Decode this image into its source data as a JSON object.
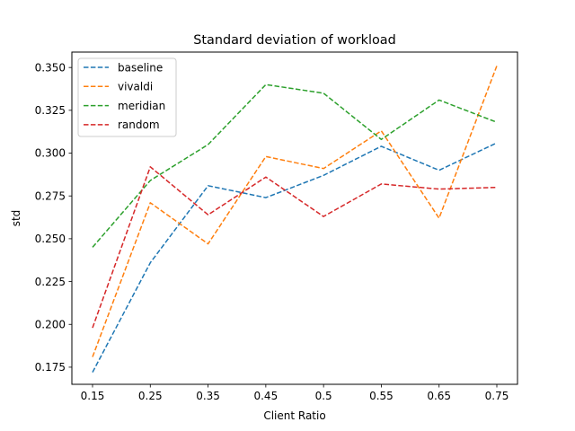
{
  "chart_data": {
    "type": "line",
    "title": "Standard deviation of workload",
    "xlabel": "Client Ratio",
    "ylabel": "std",
    "categories": [
      "0.15",
      "0.25",
      "0.35",
      "0.45",
      "0.5",
      "0.55",
      "0.65",
      "0.75"
    ],
    "ylim": [
      0.165,
      0.359
    ],
    "yticks": [
      "0.175",
      "0.200",
      "0.225",
      "0.250",
      "0.275",
      "0.300",
      "0.325",
      "0.350"
    ],
    "line_style": "dashed",
    "grid": false,
    "legend_position": "top-left",
    "series": [
      {
        "name": "baseline",
        "color": "#1f77b4",
        "values": [
          0.172,
          0.236,
          0.281,
          0.274,
          0.287,
          0.304,
          0.29,
          0.306
        ]
      },
      {
        "name": "vivaldi",
        "color": "#ff7f0e",
        "values": [
          0.181,
          0.271,
          0.247,
          0.298,
          0.291,
          0.313,
          0.262,
          0.351
        ]
      },
      {
        "name": "meridian",
        "color": "#2ca02c",
        "values": [
          0.245,
          0.284,
          0.305,
          0.34,
          0.335,
          0.308,
          0.331,
          0.318
        ]
      },
      {
        "name": "random",
        "color": "#d62728",
        "values": [
          0.198,
          0.292,
          0.264,
          0.286,
          0.263,
          0.282,
          0.279,
          0.28
        ]
      }
    ]
  }
}
